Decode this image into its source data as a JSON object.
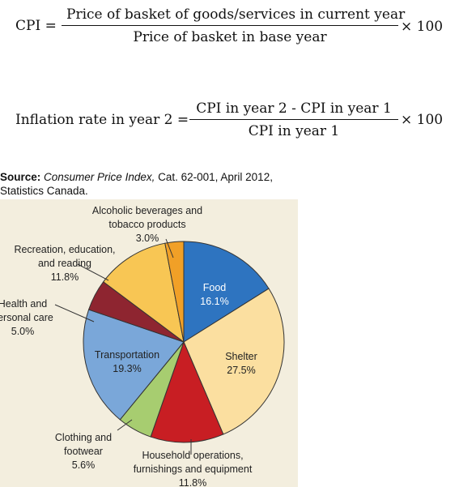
{
  "formulas": {
    "cpi": {
      "lhs": "CPI =",
      "numerator": "Price of basket of goods/services in current year",
      "denominator": "Price of basket in base year",
      "multiplier": "× 100"
    },
    "inflation": {
      "lhs": "Inflation rate in year 2 =",
      "numerator": "CPI in year 2 - CPI in year 1",
      "denominator": "CPI in year 1",
      "multiplier": "× 100"
    }
  },
  "source": {
    "label": "Source:",
    "publication": "Consumer Price Index,",
    "details": "Cat. 62-001, April 2012,",
    "line2": "Statistics Canada."
  },
  "chart_data": {
    "type": "pie",
    "title": "",
    "slices": [
      {
        "name": "Food",
        "value_label": "16.1%",
        "value": 16.1,
        "color": "#2e74c0"
      },
      {
        "name": "Shelter",
        "value_label": "27.5%",
        "value": 27.5,
        "color": "#fbdfa0"
      },
      {
        "name": "Household operations, furnishings and equipment",
        "value_label": "11.8%",
        "value": 11.8,
        "color": "#c81e23"
      },
      {
        "name": "Clothing and footwear",
        "value_label": "5.6%",
        "value": 5.6,
        "color": "#a7cd70"
      },
      {
        "name": "Transportation",
        "value_label": "19.3%",
        "value": 19.3,
        "color": "#7aa7d9"
      },
      {
        "name": "Health and personal care",
        "value_label": "5.0%",
        "value": 5.0,
        "color": "#8e2530"
      },
      {
        "name": "Recreation, education, and reading",
        "value_label": "11.8%",
        "value": 11.8,
        "color": "#f8c654"
      },
      {
        "name": "Alcoholic beverages and tobacco products",
        "value_label": "3.0%",
        "value": 3.0,
        "color": "#f1a027"
      }
    ],
    "label_lines": {
      "food": [
        "Food",
        "16.1%"
      ],
      "shelter": [
        "Shelter",
        "27.5%"
      ],
      "household": [
        "Household operations,",
        "furnishings and equipment",
        "11.8%"
      ],
      "clothing": [
        "Clothing and",
        "footwear",
        "5.6%"
      ],
      "transportation": [
        "Transportation",
        "19.3%"
      ],
      "health": [
        "Health and",
        "personal care",
        "5.0%"
      ],
      "recreation": [
        "Recreation, education,",
        "and reading",
        "11.8%"
      ],
      "alcohol": [
        "Alcoholic beverages and",
        "tobacco products",
        "3.0%"
      ]
    }
  }
}
